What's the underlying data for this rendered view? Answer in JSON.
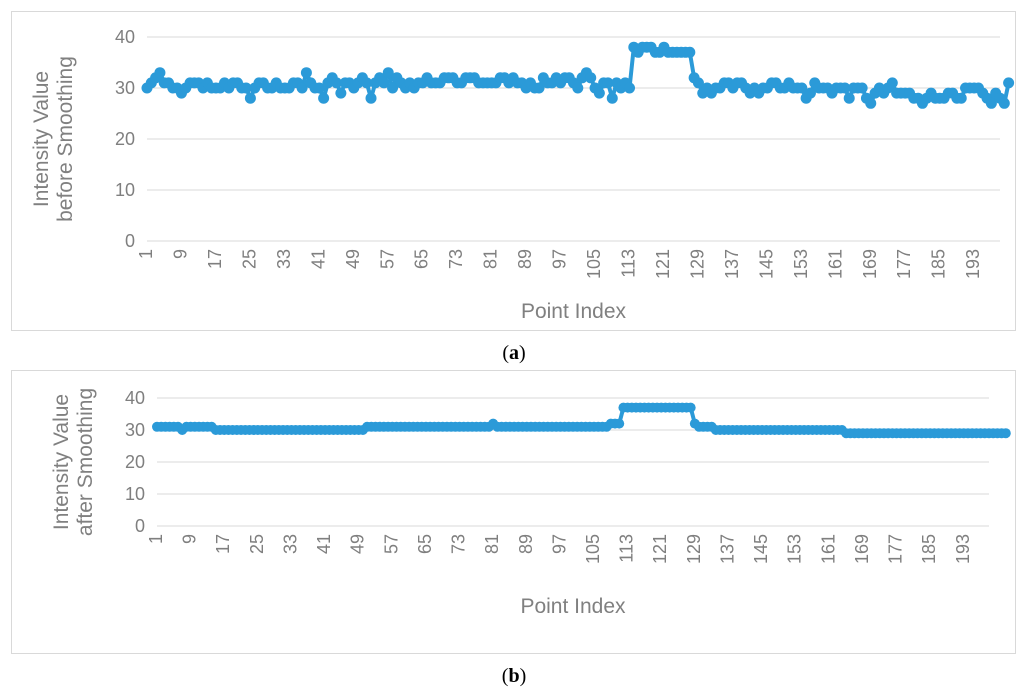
{
  "colors": {
    "series": "#2b9ad8",
    "grid": "#d9d9d9",
    "axis_text": "#7f7f7f",
    "title_text": "#808080"
  },
  "captions": {
    "a_label": "a",
    "b_label": "b"
  },
  "chart_data": [
    {
      "type": "line",
      "ylabel": "Intensity Value before Smoothing",
      "ylabel_lines": [
        "Intensity Value",
        "before Smoothing"
      ],
      "xlabel": "Point Index",
      "ylim": [
        0,
        40
      ],
      "yticks": [
        0,
        10,
        20,
        30,
        40
      ],
      "xtick_labels": [
        "1",
        "9",
        "17",
        "25",
        "33",
        "41",
        "49",
        "57",
        "65",
        "73",
        "81",
        "89",
        "97",
        "105",
        "113",
        "121",
        "129",
        "137",
        "145",
        "153",
        "161",
        "169",
        "177",
        "185",
        "193"
      ],
      "x_range": [
        1,
        199
      ],
      "grid": true,
      "markers": true,
      "series": [
        {
          "values": [
            30,
            31,
            32,
            33,
            31,
            31,
            30,
            30,
            29,
            30,
            31,
            31,
            31,
            30,
            31,
            30,
            30,
            30,
            31,
            30,
            31,
            31,
            30,
            30,
            28,
            30,
            31,
            31,
            30,
            30,
            31,
            30,
            30,
            30,
            31,
            31,
            30,
            33,
            31,
            30,
            30,
            28,
            31,
            32,
            31,
            29,
            31,
            31,
            30,
            31,
            32,
            31,
            28,
            31,
            32,
            31,
            33,
            30,
            32,
            31,
            30,
            31,
            30,
            31,
            31,
            32,
            31,
            31,
            31,
            32,
            32,
            32,
            31,
            31,
            32,
            32,
            32,
            31,
            31,
            31,
            31,
            31,
            32,
            32,
            31,
            32,
            31,
            31,
            30,
            31,
            30,
            30,
            32,
            31,
            31,
            32,
            31,
            32,
            32,
            31,
            30,
            32,
            33,
            32,
            30,
            29,
            31,
            31,
            28,
            31,
            30,
            31,
            30,
            38,
            37,
            38,
            38,
            38,
            37,
            37,
            38,
            37,
            37,
            37,
            37,
            37,
            37,
            32,
            31,
            29,
            30,
            29,
            30,
            30,
            31,
            31,
            30,
            31,
            31,
            30,
            29,
            30,
            29,
            30,
            30,
            31,
            31,
            30,
            30,
            31,
            30,
            30,
            30,
            28,
            29,
            31,
            30,
            30,
            30,
            29,
            30,
            30,
            30,
            28,
            30,
            30,
            30,
            28,
            27,
            29,
            30,
            29,
            30,
            31,
            29,
            29,
            29,
            29,
            28,
            28,
            27,
            28,
            29,
            28,
            28,
            28,
            29,
            29,
            28,
            28,
            30,
            30,
            30,
            30,
            29,
            28,
            27,
            29,
            28,
            27,
            31
          ]
        }
      ]
    },
    {
      "type": "line",
      "ylabel": "Intensity Value after Smoothing",
      "ylabel_lines": [
        "Intensity Value",
        "after Smoothing"
      ],
      "xlabel": "Point Index",
      "ylim": [
        0,
        40
      ],
      "yticks": [
        0,
        10,
        20,
        30,
        40
      ],
      "xtick_labels": [
        "1",
        "9",
        "17",
        "25",
        "33",
        "41",
        "49",
        "57",
        "65",
        "73",
        "81",
        "89",
        "97",
        "105",
        "113",
        "121",
        "129",
        "137",
        "145",
        "153",
        "161",
        "169",
        "177",
        "185",
        "193"
      ],
      "x_range": [
        1,
        199
      ],
      "grid": true,
      "markers": true,
      "series": [
        {
          "values": [
            31,
            31,
            31,
            31,
            31,
            31,
            30,
            31,
            31,
            31,
            31,
            31,
            31,
            31,
            30,
            30,
            30,
            30,
            30,
            30,
            30,
            30,
            30,
            30,
            30,
            30,
            30,
            30,
            30,
            30,
            30,
            30,
            30,
            30,
            30,
            30,
            30,
            30,
            30,
            30,
            30,
            30,
            30,
            30,
            30,
            30,
            30,
            30,
            30,
            30,
            31,
            31,
            31,
            31,
            31,
            31,
            31,
            31,
            31,
            31,
            31,
            31,
            31,
            31,
            31,
            31,
            31,
            31,
            31,
            31,
            31,
            31,
            31,
            31,
            31,
            31,
            31,
            31,
            31,
            31,
            32,
            31,
            31,
            31,
            31,
            31,
            31,
            31,
            31,
            31,
            31,
            31,
            31,
            31,
            31,
            31,
            31,
            31,
            31,
            31,
            31,
            31,
            31,
            31,
            31,
            31,
            31,
            31,
            32,
            32,
            32,
            37,
            37,
            37,
            37,
            37,
            37,
            37,
            37,
            37,
            37,
            37,
            37,
            37,
            37,
            37,
            37,
            37,
            32,
            31,
            31,
            31,
            31,
            30,
            30,
            30,
            30,
            30,
            30,
            30,
            30,
            30,
            30,
            30,
            30,
            30,
            30,
            30,
            30,
            30,
            30,
            30,
            30,
            30,
            30,
            30,
            30,
            30,
            30,
            30,
            30,
            30,
            30,
            30,
            29,
            29,
            29,
            29,
            29,
            29,
            29,
            29,
            29,
            29,
            29,
            29,
            29,
            29,
            29,
            29,
            29,
            29,
            29,
            29,
            29,
            29,
            29,
            29,
            29,
            29,
            29,
            29,
            29,
            29,
            29,
            29,
            29,
            29,
            29,
            29,
            29,
            29,
            29
          ]
        }
      ]
    }
  ]
}
